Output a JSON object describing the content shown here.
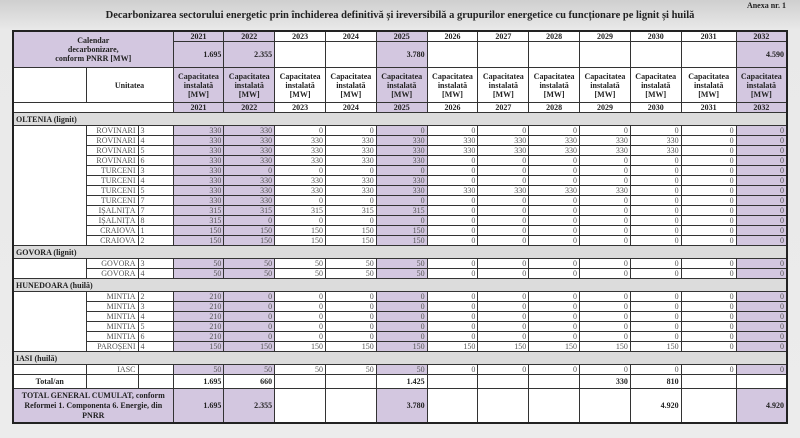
{
  "annex": "Anexa nr. 1",
  "title": "Decarbonizarea sectorului energetic prin închiderea definitivă și ireversibilă a grupurilor energetice cu funcționare pe lignit și huilă",
  "years": [
    "2021",
    "2022",
    "2023",
    "2024",
    "2025",
    "2026",
    "2027",
    "2028",
    "2029",
    "2030",
    "2031",
    "2032"
  ],
  "highlight_years": [
    "2021",
    "2022",
    "2025",
    "2032"
  ],
  "colors": {
    "highlight": "#d3c7e0",
    "section": "#dcdcdc"
  },
  "calendar": {
    "label": "Calendar decarbonizare, conform PNRR [MW]",
    "values": [
      "1.695",
      "2.355",
      "",
      "",
      "3.780",
      "",
      "",
      "",
      "",
      "",
      "",
      "4.590"
    ]
  },
  "unit_header": "Unitatea",
  "capacity_header": "Capacitatea instalată [MW]",
  "sections": [
    {
      "name": "OLTENIA (lignit)",
      "rows": [
        {
          "unit": "ROVINARI",
          "group": "3",
          "values": [
            330,
            330,
            0,
            0,
            0,
            0,
            0,
            0,
            0,
            0,
            0,
            0
          ]
        },
        {
          "unit": "ROVINARI",
          "group": "4",
          "values": [
            330,
            330,
            330,
            330,
            330,
            330,
            330,
            330,
            330,
            330,
            0,
            0
          ]
        },
        {
          "unit": "ROVINARI",
          "group": "5",
          "values": [
            330,
            330,
            330,
            330,
            330,
            330,
            330,
            330,
            330,
            330,
            0,
            0
          ]
        },
        {
          "unit": "ROVINARI",
          "group": "6",
          "values": [
            330,
            330,
            330,
            330,
            330,
            0,
            0,
            0,
            0,
            0,
            0,
            0
          ]
        },
        {
          "unit": "TURCENI",
          "group": "3",
          "values": [
            330,
            0,
            0,
            0,
            0,
            0,
            0,
            0,
            0,
            0,
            0,
            0
          ]
        },
        {
          "unit": "TURCENI",
          "group": "4",
          "values": [
            330,
            330,
            330,
            330,
            330,
            0,
            0,
            0,
            0,
            0,
            0,
            0
          ]
        },
        {
          "unit": "TURCENI",
          "group": "5",
          "values": [
            330,
            330,
            330,
            330,
            330,
            330,
            330,
            330,
            330,
            0,
            0,
            0
          ]
        },
        {
          "unit": "TURCENI",
          "group": "7",
          "values": [
            330,
            330,
            0,
            0,
            0,
            0,
            0,
            0,
            0,
            0,
            0,
            0
          ]
        },
        {
          "unit": "IȘALNIȚA",
          "group": "7",
          "values": [
            315,
            315,
            315,
            315,
            315,
            0,
            0,
            0,
            0,
            0,
            0,
            0
          ]
        },
        {
          "unit": "IȘALNIȚA",
          "group": "8",
          "values": [
            315,
            0,
            0,
            0,
            0,
            0,
            0,
            0,
            0,
            0,
            0,
            0
          ]
        },
        {
          "unit": "CRAIOVA",
          "group": "1",
          "values": [
            150,
            150,
            150,
            150,
            150,
            0,
            0,
            0,
            0,
            0,
            0,
            0
          ]
        },
        {
          "unit": "CRAIOVA",
          "group": "2",
          "values": [
            150,
            150,
            150,
            150,
            150,
            0,
            0,
            0,
            0,
            0,
            0,
            0
          ]
        }
      ]
    },
    {
      "name": "GOVORA (lignit)",
      "rows": [
        {
          "unit": "GOVORA",
          "group": "3",
          "values": [
            50,
            50,
            50,
            50,
            50,
            0,
            0,
            0,
            0,
            0,
            0,
            0
          ]
        },
        {
          "unit": "GOVORA",
          "group": "4",
          "values": [
            50,
            50,
            50,
            50,
            50,
            0,
            0,
            0,
            0,
            0,
            0,
            0
          ]
        }
      ]
    },
    {
      "name": "HUNEDOARA (huilă)",
      "rows": [
        {
          "unit": "MINTIA",
          "group": "2",
          "values": [
            210,
            0,
            0,
            0,
            0,
            0,
            0,
            0,
            0,
            0,
            0,
            0
          ]
        },
        {
          "unit": "MINTIA",
          "group": "3",
          "values": [
            210,
            0,
            0,
            0,
            0,
            0,
            0,
            0,
            0,
            0,
            0,
            0
          ]
        },
        {
          "unit": "MINTIA",
          "group": "4",
          "values": [
            210,
            0,
            0,
            0,
            0,
            0,
            0,
            0,
            0,
            0,
            0,
            0
          ]
        },
        {
          "unit": "MINTIA",
          "group": "5",
          "values": [
            210,
            0,
            0,
            0,
            0,
            0,
            0,
            0,
            0,
            0,
            0,
            0
          ]
        },
        {
          "unit": "MINTIA",
          "group": "6",
          "values": [
            210,
            0,
            0,
            0,
            0,
            0,
            0,
            0,
            0,
            0,
            0,
            0
          ]
        },
        {
          "unit": "PAROȘENI",
          "group": "4",
          "values": [
            150,
            150,
            150,
            150,
            150,
            150,
            150,
            150,
            150,
            150,
            0,
            0
          ]
        }
      ]
    },
    {
      "name": "IASI (huilă)",
      "rows": [
        {
          "unit": "IASC",
          "group": "",
          "values": [
            50,
            50,
            50,
            50,
            50,
            0,
            0,
            0,
            0,
            0,
            0,
            0
          ]
        }
      ]
    }
  ],
  "total_year": {
    "label": "Total/an",
    "values": [
      "1.695",
      "660",
      "",
      "",
      "1.425",
      "",
      "",
      "",
      "330",
      "810",
      "",
      ""
    ]
  },
  "total_cumulative": {
    "label": "TOTAL GENERAL CUMULAT, conform Reformei 1. Componenta 6. Energie, din PNRR",
    "values": [
      "1.695",
      "2.355",
      "",
      "",
      "3.780",
      "",
      "",
      "",
      "",
      "4.920",
      "",
      "4.920"
    ]
  }
}
